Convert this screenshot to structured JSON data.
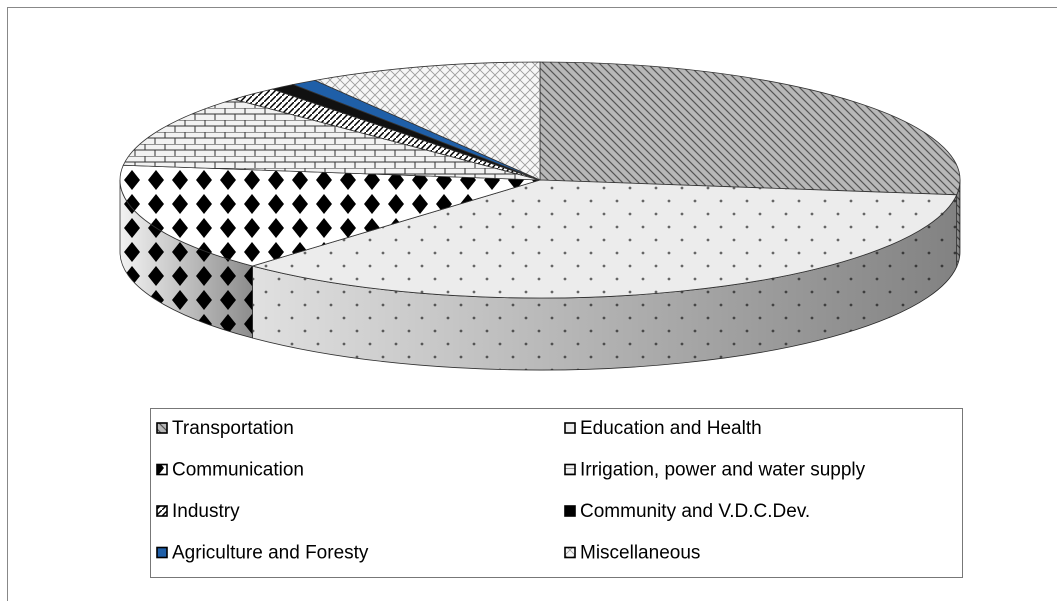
{
  "chart_data": {
    "type": "pie",
    "categories": [
      "Transportation",
      "Education and Health",
      "Communication",
      "Irrigation, power and water supply",
      "Industry",
      "Community and V.D.C.Dev.",
      "Agriculture and Foresty",
      "Miscellaneous"
    ],
    "values": [
      27,
      35,
      15,
      10,
      2,
      1,
      1,
      9
    ],
    "colors": [
      "#a0a0a0",
      "#e8e8e8",
      "#ffffff",
      "#f0f0f0",
      "#ffffff",
      "#000000",
      "#1f5fa8",
      "#f4f4f4"
    ]
  }
}
